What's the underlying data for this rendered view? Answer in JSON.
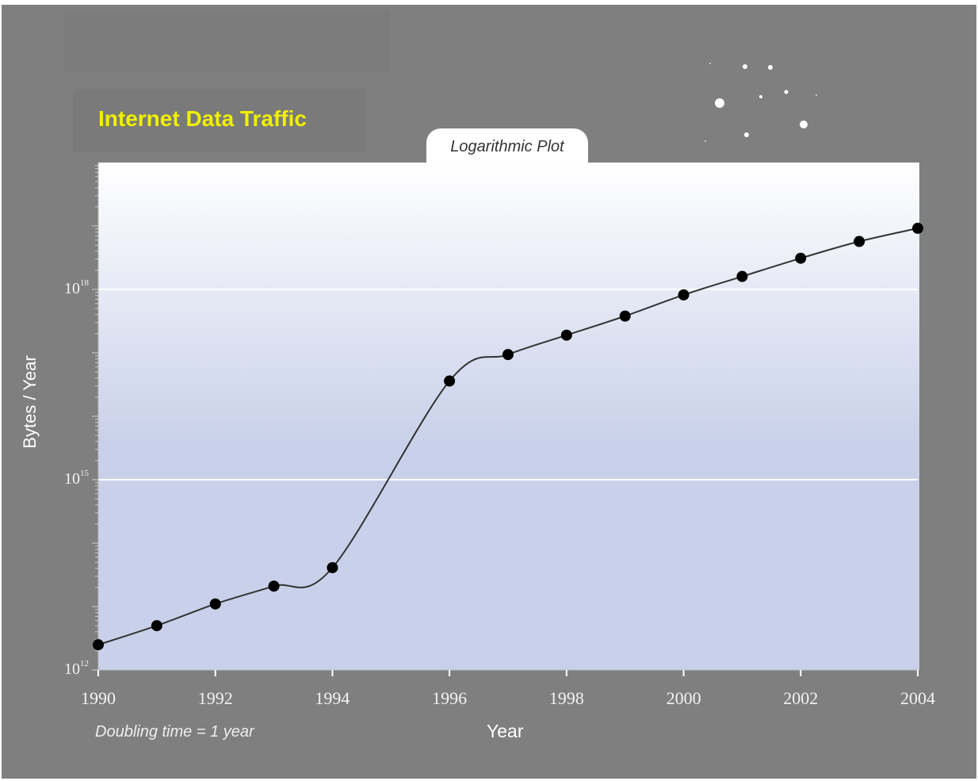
{
  "chart_data": {
    "type": "line",
    "title": "Internet Data Traffic",
    "subtitle": "Logarithmic Plot",
    "xlabel": "Year",
    "ylabel": "Bytes / Year",
    "y_scale": "log",
    "xlim": [
      1990,
      2004
    ],
    "ylim": [
      1000000000000.0,
      1e+20
    ],
    "x_ticks": [
      "1990",
      "1992",
      "1994",
      "1996",
      "1998",
      "2000",
      "2002",
      "2004"
    ],
    "y_ticks": [
      {
        "base": "10",
        "exp": "12",
        "value": 1000000000000.0
      },
      {
        "base": "10",
        "exp": "15",
        "value": 1000000000000000.0
      },
      {
        "base": "10",
        "exp": "18",
        "value": 1e+18
      }
    ],
    "grid": "horizontal at labeled y ticks",
    "legend": "none",
    "x": [
      1990,
      1991,
      1992,
      1993,
      1994,
      1996,
      1997,
      1998,
      1999,
      2000,
      2001,
      2002,
      2003,
      2004
    ],
    "y": [
      2500000000000.0,
      5000000000000.0,
      11000000000000.0,
      21000000000000.0,
      41000000000000.0,
      3.6e+16,
      9.4e+16,
      1.9e+17,
      3.8e+17,
      8.2e+17,
      1.6e+18,
      3.1e+18,
      5.7e+18,
      9.2e+18
    ],
    "annotation": "Doubling time = 1 year",
    "colors": {
      "background": "#7f7f7f",
      "title": "#f0f000",
      "plot_top": "#ffffff",
      "plot_bottom": "#c9d1ea",
      "markers": "#000000",
      "line": "#333333"
    }
  }
}
